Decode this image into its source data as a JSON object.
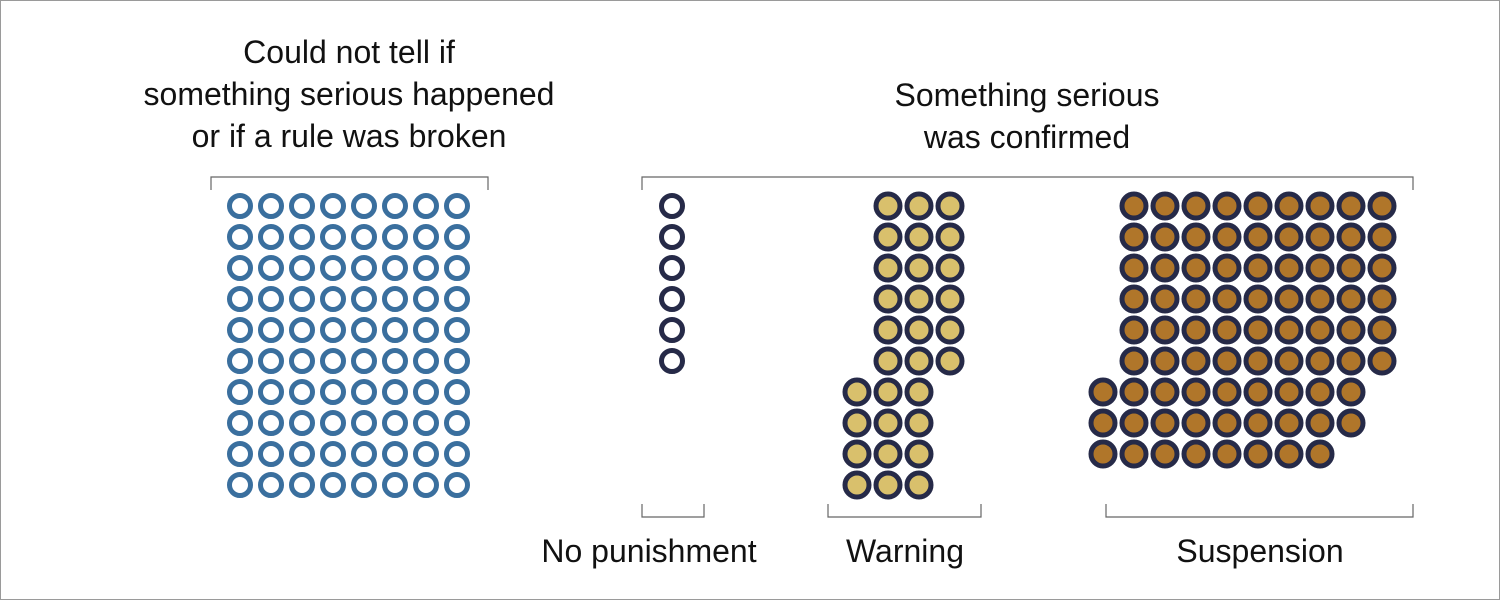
{
  "headers": {
    "unclear": {
      "lines": [
        "Could not tell if",
        "something serious happened",
        "or if a rule was broken"
      ]
    },
    "confirmed": {
      "lines": [
        "Something serious",
        "was confirmed"
      ]
    }
  },
  "chart_data": {
    "type": "unit dot matrix (waffle)",
    "unit": "one circle per case",
    "groups": [
      {
        "key": "unclear",
        "header": "Could not tell if something serious happened or if a rule was broken",
        "label": "",
        "count": 80,
        "columns": 8,
        "style": "hollow",
        "colors": {
          "stroke": "#3a6f9e",
          "fill": "#ffffff"
        }
      },
      {
        "key": "none",
        "header": "Something serious was confirmed",
        "label": "No punishment",
        "count": 6,
        "columns": 1,
        "style": "hollow",
        "colors": {
          "stroke": "#262a48",
          "fill": "#ffffff"
        }
      },
      {
        "key": "warning",
        "header": "Something serious was confirmed",
        "label": "Warning",
        "count": 30,
        "columns": 3,
        "style": "filled",
        "colors": {
          "stroke": "#262a48",
          "fill": "#d9c06c"
        }
      },
      {
        "key": "suspension",
        "header": "Something serious was confirmed",
        "label": "Suspension",
        "count": 80,
        "columns": 9,
        "style": "filled",
        "colors": {
          "stroke": "#262a48",
          "fill": "#b0762a"
        }
      }
    ],
    "bracket_color": "#666666"
  }
}
